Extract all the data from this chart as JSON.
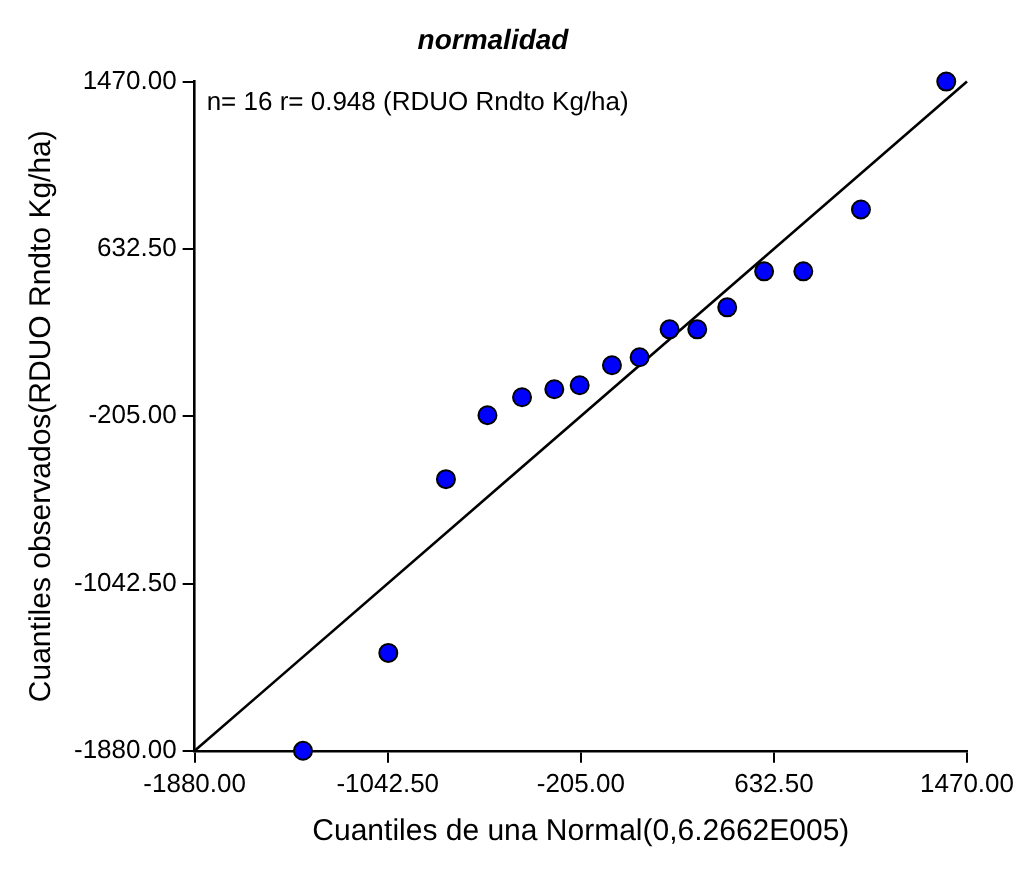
{
  "chart_data": {
    "type": "scatter",
    "title": "normalidad",
    "xlabel": "Cuantiles de una Normal(0,6.2662E005)",
    "ylabel": "Cuantiles observados(RDUO Rndto Kg/ha)",
    "annotations": [
      "n= 16 r= 0.948 (RDUO Rndto Kg/ha)"
    ],
    "xlim": [
      -1880,
      1470
    ],
    "ylim": [
      -1880,
      1470
    ],
    "xticks": [
      {
        "value": -1880,
        "label": "-1880.00"
      },
      {
        "value": -1042.5,
        "label": "-1042.50"
      },
      {
        "value": -205,
        "label": "-205.00"
      },
      {
        "value": 632.5,
        "label": "632.50"
      },
      {
        "value": 1470,
        "label": "1470.00"
      }
    ],
    "yticks": [
      {
        "value": -1880,
        "label": "-1880.00"
      },
      {
        "value": -1042.5,
        "label": "-1042.50"
      },
      {
        "value": -205,
        "label": "-205.00"
      },
      {
        "value": 632.5,
        "label": "632.50"
      },
      {
        "value": 1470,
        "label": "1470.00"
      }
    ],
    "grid": false,
    "legend": false,
    "series": [
      {
        "type": "scatter",
        "marker": "circle",
        "color": "#0000ff",
        "x": [
          -1410,
          -1040,
          -790,
          -610,
          -460,
          -320,
          -210,
          -70,
          50,
          180,
          300,
          430,
          590,
          760,
          1010,
          1380
        ],
        "values": [
          -1880,
          -1390,
          -520,
          -200,
          -110,
          -70,
          -50,
          50,
          90,
          230,
          230,
          340,
          520,
          520,
          830,
          1470
        ]
      },
      {
        "type": "line",
        "marker": "none",
        "color": "#000000",
        "x": [
          -1880,
          1470
        ],
        "values": [
          -1880,
          1470
        ]
      }
    ]
  }
}
